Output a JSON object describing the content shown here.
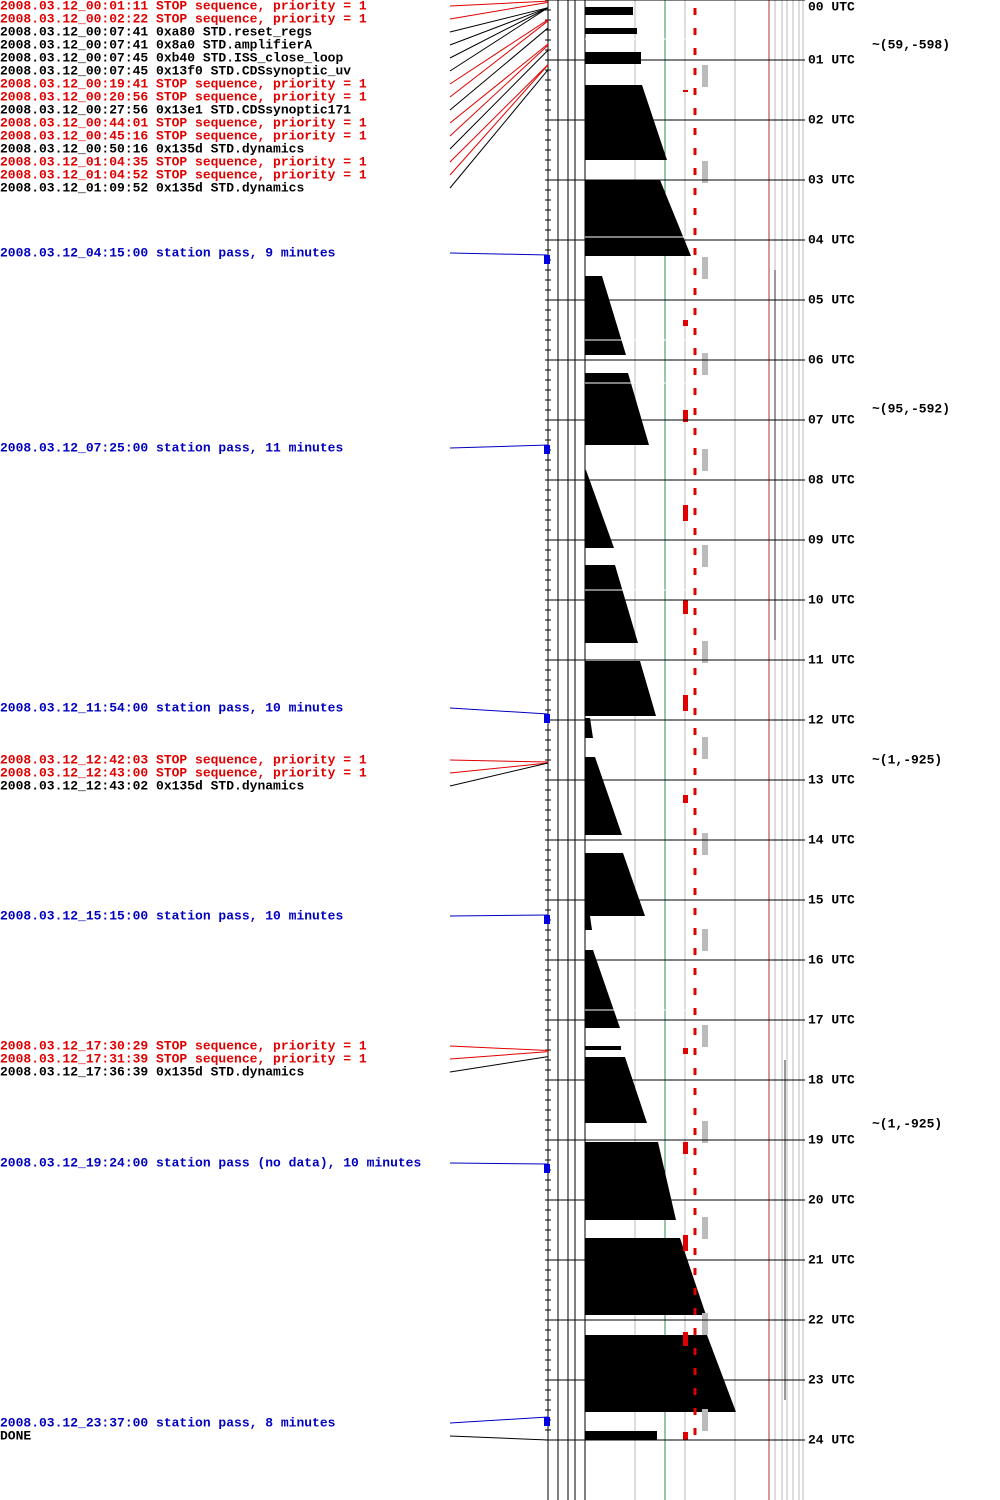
{
  "log": [
    {
      "text": "2008.03.12_00:01:11 STOP sequence, priority = 1",
      "color": "#e00000"
    },
    {
      "text": "2008.03.12_00:02:22 STOP sequence, priority = 1",
      "color": "#e00000"
    },
    {
      "text": "2008.03.12_00:07:41  0xa80 STD.reset_regs",
      "color": "#000000"
    },
    {
      "text": "2008.03.12_00:07:41  0x8a0 STD.amplifierA",
      "color": "#000000"
    },
    {
      "text": "2008.03.12_00:07:45  0xb40 STD.ISS_close_loop",
      "color": "#000000"
    },
    {
      "text": "2008.03.12_00:07:45 0x13f0 STD.CDSsynoptic_uv",
      "color": "#000000"
    },
    {
      "text": "2008.03.12_00:19:41 STOP sequence, priority = 1",
      "color": "#e00000"
    },
    {
      "text": "2008.03.12_00:20:56 STOP sequence, priority = 1",
      "color": "#e00000"
    },
    {
      "text": "2008.03.12_00:27:56 0x13e1 STD.CDSsynoptic171",
      "color": "#000000"
    },
    {
      "text": "2008.03.12_00:44:01 STOP sequence, priority = 1",
      "color": "#e00000"
    },
    {
      "text": "2008.03.12_00:45:16 STOP sequence, priority = 1",
      "color": "#e00000"
    },
    {
      "text": "2008.03.12_00:50:16 0x135d STD.dynamics",
      "color": "#000000"
    },
    {
      "text": "2008.03.12_01:04:35 STOP sequence, priority = 1",
      "color": "#e00000"
    },
    {
      "text": "2008.03.12_01:04:52 STOP sequence, priority = 1",
      "color": "#e00000"
    },
    {
      "text": "2008.03.12_01:09:52 0x135d STD.dynamics",
      "color": "#000000"
    },
    {
      "text": "2008.03.12_04:15:00 station pass, 9 minutes",
      "color": "#0000c0"
    },
    {
      "text": "2008.03.12_07:25:00 station pass, 11 minutes",
      "color": "#0000c0"
    },
    {
      "text": "2008.03.12_11:54:00 station pass, 10 minutes",
      "color": "#0000c0"
    },
    {
      "text": "2008.03.12_12:42:03 STOP sequence, priority = 1",
      "color": "#e00000"
    },
    {
      "text": "2008.03.12_12:43:00 STOP sequence, priority = 1",
      "color": "#e00000"
    },
    {
      "text": "2008.03.12_12:43:02 0x135d STD.dynamics",
      "color": "#000000"
    },
    {
      "text": "2008.03.12_15:15:00 station pass, 10 minutes",
      "color": "#0000c0"
    },
    {
      "text": "2008.03.12_17:30:29 STOP sequence, priority = 1",
      "color": "#e00000"
    },
    {
      "text": "2008.03.12_17:31:39 STOP sequence, priority = 1",
      "color": "#e00000"
    },
    {
      "text": "2008.03.12_17:36:39 0x135d STD.dynamics",
      "color": "#000000"
    },
    {
      "text": "2008.03.12_19:24:00 station pass (no data), 10 minutes",
      "color": "#0000c0"
    },
    {
      "text": "2008.03.12_23:37:00 station pass, 8 minutes",
      "color": "#0000c0"
    },
    {
      "text": "DONE",
      "color": "#000000"
    }
  ],
  "hour_labels": [
    "00 UTC",
    "01 UTC",
    "02 UTC",
    "03 UTC",
    "04 UTC",
    "05 UTC",
    "06 UTC",
    "07 UTC",
    "08 UTC",
    "09 UTC",
    "10 UTC",
    "11 UTC",
    "12 UTC",
    "13 UTC",
    "14 UTC",
    "15 UTC",
    "16 UTC",
    "17 UTC",
    "18 UTC",
    "19 UTC",
    "20 UTC",
    "21 UTC",
    "22 UTC",
    "23 UTC",
    "24 UTC"
  ],
  "annotations": [
    {
      "text": "~(59,-598)"
    },
    {
      "text": "~(95,-592)"
    },
    {
      "text": "~(1,-925)"
    },
    {
      "text": "~(1,-925)"
    }
  ]
}
